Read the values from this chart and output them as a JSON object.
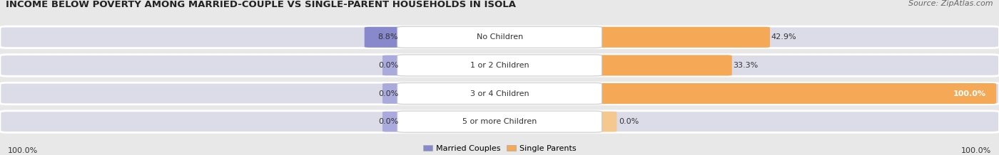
{
  "title": "INCOME BELOW POVERTY AMONG MARRIED-COUPLE VS SINGLE-PARENT HOUSEHOLDS IN ISOLA",
  "source": "Source: ZipAtlas.com",
  "categories": [
    "No Children",
    "1 or 2 Children",
    "3 or 4 Children",
    "5 or more Children"
  ],
  "married_values": [
    8.8,
    0.0,
    0.0,
    0.0
  ],
  "single_values": [
    42.9,
    33.3,
    100.0,
    0.0
  ],
  "married_color": "#8888cc",
  "single_color": "#f5a855",
  "single_color_light": "#f5c890",
  "bg_color": "#e8e8e8",
  "bar_bg_color": "#e0e0e8",
  "title_fontsize": 9.5,
  "source_fontsize": 8,
  "label_fontsize": 8,
  "value_fontsize": 8,
  "legend_fontsize": 8,
  "bottom_left_label": "100.0%",
  "bottom_right_label": "100.0%"
}
